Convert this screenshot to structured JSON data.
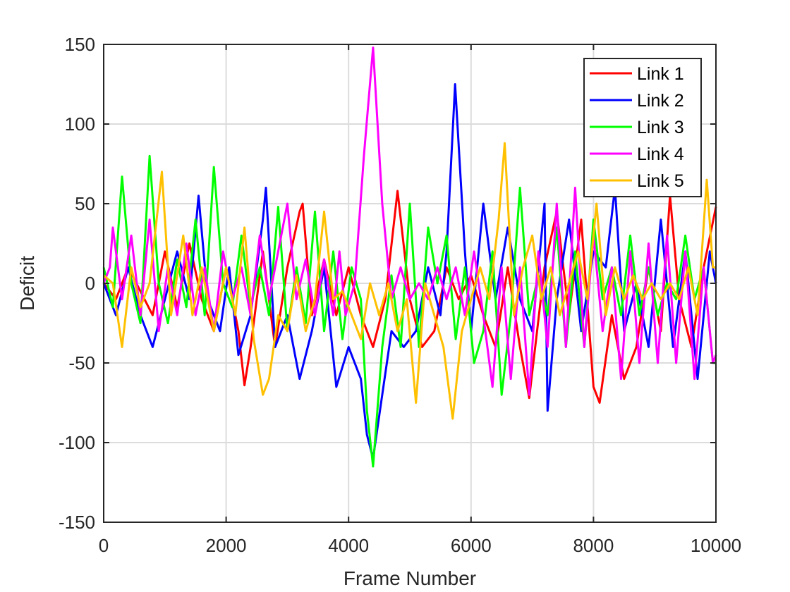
{
  "chart_data": {
    "type": "line",
    "title": "",
    "xlabel": "Frame Number",
    "ylabel": "Deficit",
    "xlim": [
      0,
      10000
    ],
    "ylim": [
      -150,
      150
    ],
    "xticks": [
      0,
      2000,
      4000,
      6000,
      8000,
      10000
    ],
    "yticks": [
      -150,
      -100,
      -50,
      0,
      50,
      100,
      150
    ],
    "xtick_labels": [
      "0",
      "2000",
      "4000",
      "6000",
      "8000",
      "10000"
    ],
    "ytick_labels": [
      "-150",
      "-100",
      "-50",
      "0",
      "50",
      "100",
      "150"
    ],
    "grid": true,
    "legend_position": "top-right",
    "series": [
      {
        "name": "Link 1",
        "color": "#ff0000",
        "x": [
          0,
          200,
          400,
          600,
          800,
          1000,
          1200,
          1400,
          1600,
          1800,
          2000,
          2200,
          2300,
          2400,
          2600,
          2800,
          3000,
          3200,
          3250,
          3400,
          3600,
          3800,
          4000,
          4200,
          4400,
          4600,
          4800,
          5000,
          5200,
          5400,
          5600,
          5800,
          6000,
          6200,
          6400,
          6600,
          6800,
          6950,
          7200,
          7400,
          7600,
          7800,
          8000,
          8100,
          8300,
          8500,
          8700,
          8900,
          9100,
          9250,
          9400,
          9600,
          9800,
          10000
        ],
        "y": [
          0,
          -10,
          10,
          -5,
          -20,
          20,
          -15,
          25,
          -10,
          -30,
          10,
          -30,
          -64,
          -40,
          20,
          -40,
          10,
          45,
          50,
          -20,
          15,
          -20,
          10,
          -20,
          -40,
          -10,
          58,
          -10,
          -40,
          -30,
          10,
          -10,
          5,
          -20,
          -40,
          10,
          -40,
          -72,
          10,
          45,
          -20,
          40,
          -65,
          -75,
          -20,
          -60,
          -40,
          10,
          -30,
          55,
          -10,
          -40,
          10,
          48
        ]
      },
      {
        "name": "Link 2",
        "color": "#0000ff",
        "x": [
          0,
          100,
          200,
          400,
          600,
          800,
          1000,
          1200,
          1400,
          1550,
          1700,
          1900,
          2050,
          2200,
          2400,
          2600,
          2650,
          2800,
          3000,
          3200,
          3400,
          3600,
          3800,
          4000,
          4200,
          4300,
          4400,
          4550,
          4700,
          4900,
          5100,
          5300,
          5500,
          5600,
          5740,
          5900,
          6000,
          6200,
          6400,
          6600,
          6800,
          7000,
          7200,
          7250,
          7400,
          7600,
          7800,
          8000,
          8200,
          8350,
          8500,
          8700,
          8900,
          9100,
          9300,
          9500,
          9700,
          9900,
          10000
        ],
        "y": [
          0,
          -10,
          -20,
          10,
          -20,
          -40,
          -10,
          20,
          -10,
          55,
          -10,
          -30,
          10,
          -45,
          -20,
          40,
          60,
          -40,
          -20,
          -60,
          -30,
          10,
          -65,
          -40,
          -60,
          -95,
          -110,
          -70,
          -30,
          -40,
          -30,
          10,
          -20,
          20,
          125,
          20,
          -30,
          50,
          -10,
          35,
          -10,
          -30,
          50,
          -80,
          -10,
          40,
          -30,
          20,
          10,
          60,
          -30,
          0,
          -40,
          40,
          -40,
          20,
          -60,
          20,
          0
        ]
      },
      {
        "name": "Link 3",
        "color": "#00ff00",
        "x": [
          0,
          150,
          300,
          450,
          600,
          750,
          900,
          1050,
          1200,
          1350,
          1500,
          1650,
          1800,
          1950,
          2100,
          2250,
          2400,
          2550,
          2700,
          2850,
          3000,
          3150,
          3300,
          3450,
          3600,
          3750,
          3900,
          4050,
          4200,
          4300,
          4400,
          4550,
          4700,
          4850,
          5000,
          5150,
          5300,
          5450,
          5600,
          5750,
          5900,
          6050,
          6200,
          6350,
          6500,
          6650,
          6800,
          6950,
          7100,
          7250,
          7400,
          7550,
          7700,
          7850,
          8000,
          8150,
          8300,
          8450,
          8600,
          8750,
          8900,
          9050,
          9200,
          9350,
          9500,
          9650,
          9800,
          9950,
          10000
        ],
        "y": [
          10,
          -15,
          67,
          0,
          -25,
          80,
          0,
          -25,
          15,
          -15,
          40,
          -20,
          73,
          0,
          -15,
          30,
          -15,
          10,
          -20,
          48,
          -30,
          10,
          -25,
          45,
          -30,
          20,
          -35,
          10,
          -10,
          -80,
          -115,
          -40,
          5,
          -40,
          50,
          -40,
          35,
          0,
          30,
          -35,
          10,
          -50,
          -30,
          20,
          -70,
          -20,
          60,
          -20,
          5,
          -20,
          35,
          -40,
          20,
          -40,
          40,
          -10,
          10,
          -20,
          30,
          -20,
          10,
          -20,
          0,
          -10,
          30,
          -10,
          10,
          -50,
          -50
        ]
      },
      {
        "name": "Link 4",
        "color": "#ff00ff",
        "x": [
          0,
          100,
          150,
          300,
          450,
          600,
          750,
          900,
          1050,
          1200,
          1350,
          1500,
          1650,
          1800,
          1950,
          2100,
          2250,
          2400,
          2550,
          2700,
          2850,
          3000,
          3150,
          3300,
          3450,
          3600,
          3750,
          3850,
          3950,
          4100,
          4250,
          4400,
          4550,
          4700,
          4850,
          5000,
          5150,
          5300,
          5450,
          5600,
          5750,
          5900,
          6050,
          6200,
          6350,
          6500,
          6650,
          6800,
          6950,
          7100,
          7250,
          7400,
          7550,
          7700,
          7850,
          8000,
          8150,
          8300,
          8450,
          8600,
          8750,
          8900,
          9050,
          9200,
          9350,
          9500,
          9650,
          9800,
          9950,
          10000
        ],
        "y": [
          0,
          10,
          35,
          -10,
          30,
          -20,
          40,
          -30,
          10,
          -20,
          25,
          -20,
          10,
          -30,
          20,
          -10,
          10,
          -20,
          30,
          -10,
          20,
          50,
          -10,
          15,
          -20,
          15,
          -20,
          20,
          -20,
          0,
          80,
          148,
          50,
          -10,
          10,
          -10,
          0,
          -10,
          10,
          -10,
          10,
          -20,
          20,
          -20,
          -65,
          10,
          -60,
          10,
          -70,
          20,
          -40,
          50,
          -40,
          60,
          -40,
          30,
          -30,
          10,
          -60,
          20,
          -50,
          25,
          -50,
          30,
          -50,
          20,
          -60,
          10,
          -50,
          -45
        ]
      },
      {
        "name": "Link 5",
        "color": "#ffc000",
        "x": [
          0,
          150,
          300,
          450,
          600,
          750,
          950,
          1100,
          1300,
          1450,
          1600,
          1800,
          2000,
          2150,
          2300,
          2450,
          2600,
          2700,
          2850,
          3000,
          3150,
          3300,
          3450,
          3600,
          3750,
          3900,
          4050,
          4200,
          4350,
          4500,
          4650,
          4800,
          4950,
          5100,
          5250,
          5400,
          5550,
          5700,
          5850,
          6000,
          6150,
          6300,
          6450,
          6550,
          6700,
          6850,
          7000,
          7150,
          7300,
          7450,
          7600,
          7750,
          7900,
          8050,
          8200,
          8350,
          8500,
          8650,
          8800,
          8950,
          9100,
          9250,
          9400,
          9550,
          9700,
          9850,
          9950,
          10000
        ],
        "y": [
          5,
          0,
          -40,
          10,
          -15,
          0,
          70,
          -20,
          30,
          -20,
          10,
          -30,
          10,
          -20,
          35,
          -35,
          -70,
          -60,
          -20,
          -30,
          5,
          -30,
          -10,
          45,
          -10,
          -5,
          -20,
          -35,
          0,
          -20,
          0,
          -30,
          -10,
          -75,
          0,
          -20,
          -40,
          -85,
          -30,
          -10,
          10,
          -10,
          40,
          88,
          -20,
          10,
          30,
          -10,
          10,
          -20,
          0,
          20,
          -10,
          50,
          -20,
          10,
          -10,
          5,
          -10,
          0,
          -10,
          0,
          -10,
          10,
          -20,
          65,
          10,
          10
        ]
      }
    ]
  }
}
